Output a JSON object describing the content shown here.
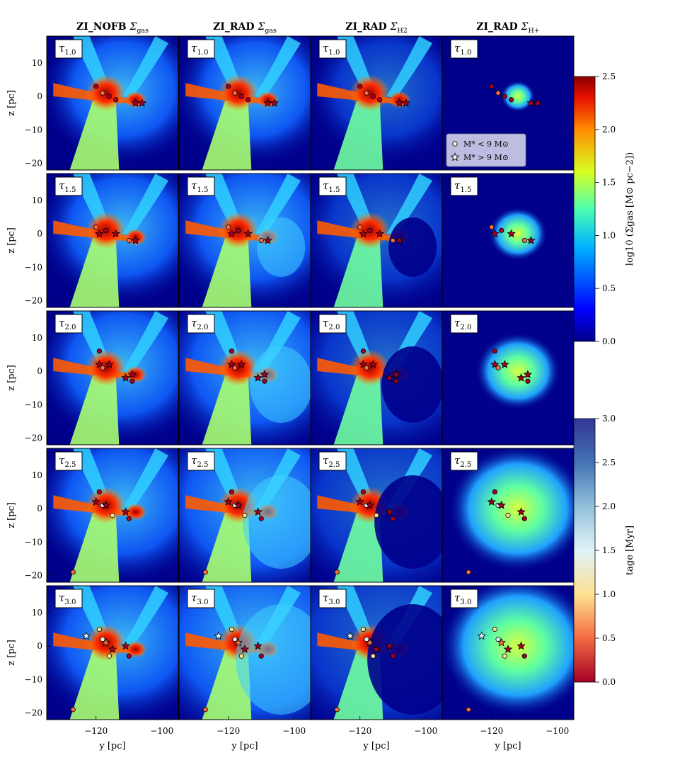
{
  "figure": {
    "column_titles": [
      {
        "prefix": "ZI_NOFB ",
        "symbol": "Σ",
        "sub": "gas"
      },
      {
        "prefix": "ZI_RAD ",
        "symbol": "Σ",
        "sub": "gas"
      },
      {
        "prefix": "ZI_RAD ",
        "symbol": "Σ",
        "sub": "H2"
      },
      {
        "prefix": "ZI_RAD ",
        "symbol": "Σ",
        "sub": "H+"
      }
    ],
    "row_labels": [
      {
        "symbol": "τ",
        "sub": "1.0"
      },
      {
        "symbol": "τ",
        "sub": "1.5"
      },
      {
        "symbol": "τ",
        "sub": "2.0"
      },
      {
        "symbol": "τ",
        "sub": "2.5"
      },
      {
        "symbol": "τ",
        "sub": "3.0"
      }
    ],
    "xlabel": "y [pc]",
    "ylabel": "z [pc]",
    "x_ticks": [
      "−120",
      "−100"
    ],
    "y_ticks": [
      "10",
      "0",
      "−10",
      "−20"
    ],
    "legend": {
      "circle_label": "M* < 9 M⊙",
      "star_label": "M* > 9 M⊙"
    },
    "colorbar_gas": {
      "label": "log10 (Σgas [M⊙ pc−2])",
      "ticks": [
        "2.5",
        "2.0",
        "1.5",
        "1.0",
        "0.5",
        "0.0"
      ],
      "range": [
        0.0,
        2.5
      ],
      "colormap": "jet"
    },
    "colorbar_age": {
      "label": "tage [Myr]",
      "ticks": [
        "3.0",
        "2.5",
        "2.0",
        "1.5",
        "1.0",
        "0.5",
        "0.0"
      ],
      "range": [
        0.0,
        3.0
      ],
      "colormap": "RdYlBu"
    },
    "colors": {
      "background_low": "#00008b",
      "mid": "#40c8ff",
      "high": "#8b0000"
    }
  },
  "chart_data": {
    "type": "heatmap",
    "title": "",
    "xlabel": "y [pc]",
    "ylabel": "z [pc]",
    "xlim": [
      -135,
      -95
    ],
    "ylim": [
      -22,
      18
    ],
    "columns": [
      "ZI_NOFB Σgas",
      "ZI_RAD Σgas",
      "ZI_RAD ΣH2",
      "ZI_RAD ΣH+"
    ],
    "rows": [
      "τ1.0",
      "τ1.5",
      "τ2.0",
      "τ2.5",
      "τ3.0"
    ],
    "colorbar_gas_range": [
      0.0,
      2.5
    ],
    "colorbar_age_range": [
      0.0,
      3.0
    ],
    "stars_by_row": [
      [
        {
          "x": -120,
          "y": 3,
          "kind": "circle",
          "age": 0.5
        },
        {
          "x": -118,
          "y": 1,
          "kind": "circle",
          "age": 0.6
        },
        {
          "x": -116,
          "y": 0,
          "kind": "circle",
          "age": 0.4
        },
        {
          "x": -114,
          "y": -1,
          "kind": "circle",
          "age": 0.5
        },
        {
          "x": -108,
          "y": -2,
          "kind": "star",
          "age": 0.2
        },
        {
          "x": -106,
          "y": -2,
          "kind": "star",
          "age": 0.2
        }
      ],
      [
        {
          "x": -120,
          "y": 2,
          "kind": "circle",
          "age": 0.6
        },
        {
          "x": -119,
          "y": 0,
          "kind": "star",
          "age": 0.3
        },
        {
          "x": -117,
          "y": 1,
          "kind": "circle",
          "age": 0.5
        },
        {
          "x": -114,
          "y": 0,
          "kind": "star",
          "age": 0.4
        },
        {
          "x": -110,
          "y": -2,
          "kind": "circle",
          "age": 0.7
        },
        {
          "x": -108,
          "y": -2,
          "kind": "star",
          "age": 0.3
        }
      ],
      [
        {
          "x": -119,
          "y": 6,
          "kind": "circle",
          "age": 0.5
        },
        {
          "x": -119,
          "y": 2,
          "kind": "star",
          "age": 0.4
        },
        {
          "x": -118,
          "y": 1,
          "kind": "circle",
          "age": 0.6
        },
        {
          "x": -116,
          "y": 2,
          "kind": "star",
          "age": 0.3
        },
        {
          "x": -111,
          "y": -2,
          "kind": "star",
          "age": 0.3
        },
        {
          "x": -109,
          "y": -1,
          "kind": "star",
          "age": 0.2
        },
        {
          "x": -109,
          "y": -3,
          "kind": "circle",
          "age": 0.4
        }
      ],
      [
        {
          "x": -119,
          "y": 5,
          "kind": "circle",
          "age": 0.5
        },
        {
          "x": -120,
          "y": 2,
          "kind": "star",
          "age": 0.4
        },
        {
          "x": -118,
          "y": 1,
          "kind": "circle",
          "age": 1.8
        },
        {
          "x": -117,
          "y": 1,
          "kind": "star",
          "age": 0.3
        },
        {
          "x": -115,
          "y": -2,
          "kind": "circle",
          "age": 1.5
        },
        {
          "x": -111,
          "y": -1,
          "kind": "star",
          "age": 0.2
        },
        {
          "x": -110,
          "y": -3,
          "kind": "circle",
          "age": 0.3
        },
        {
          "x": -127,
          "y": -19,
          "kind": "circle",
          "age": 0.8
        }
      ],
      [
        {
          "x": -119,
          "y": 5,
          "kind": "circle",
          "age": 1.2
        },
        {
          "x": -123,
          "y": 3,
          "kind": "star",
          "age": 1.6
        },
        {
          "x": -118,
          "y": 2,
          "kind": "circle",
          "age": 1.8
        },
        {
          "x": -117,
          "y": 1,
          "kind": "star",
          "age": 0.6
        },
        {
          "x": -115,
          "y": -1,
          "kind": "star",
          "age": 0.5
        },
        {
          "x": -116,
          "y": -3,
          "kind": "circle",
          "age": 1.4
        },
        {
          "x": -111,
          "y": 0,
          "kind": "star",
          "age": 0.3
        },
        {
          "x": -110,
          "y": -3,
          "kind": "circle",
          "age": 0.4
        },
        {
          "x": -127,
          "y": -19,
          "kind": "circle",
          "age": 0.9
        }
      ]
    ]
  }
}
